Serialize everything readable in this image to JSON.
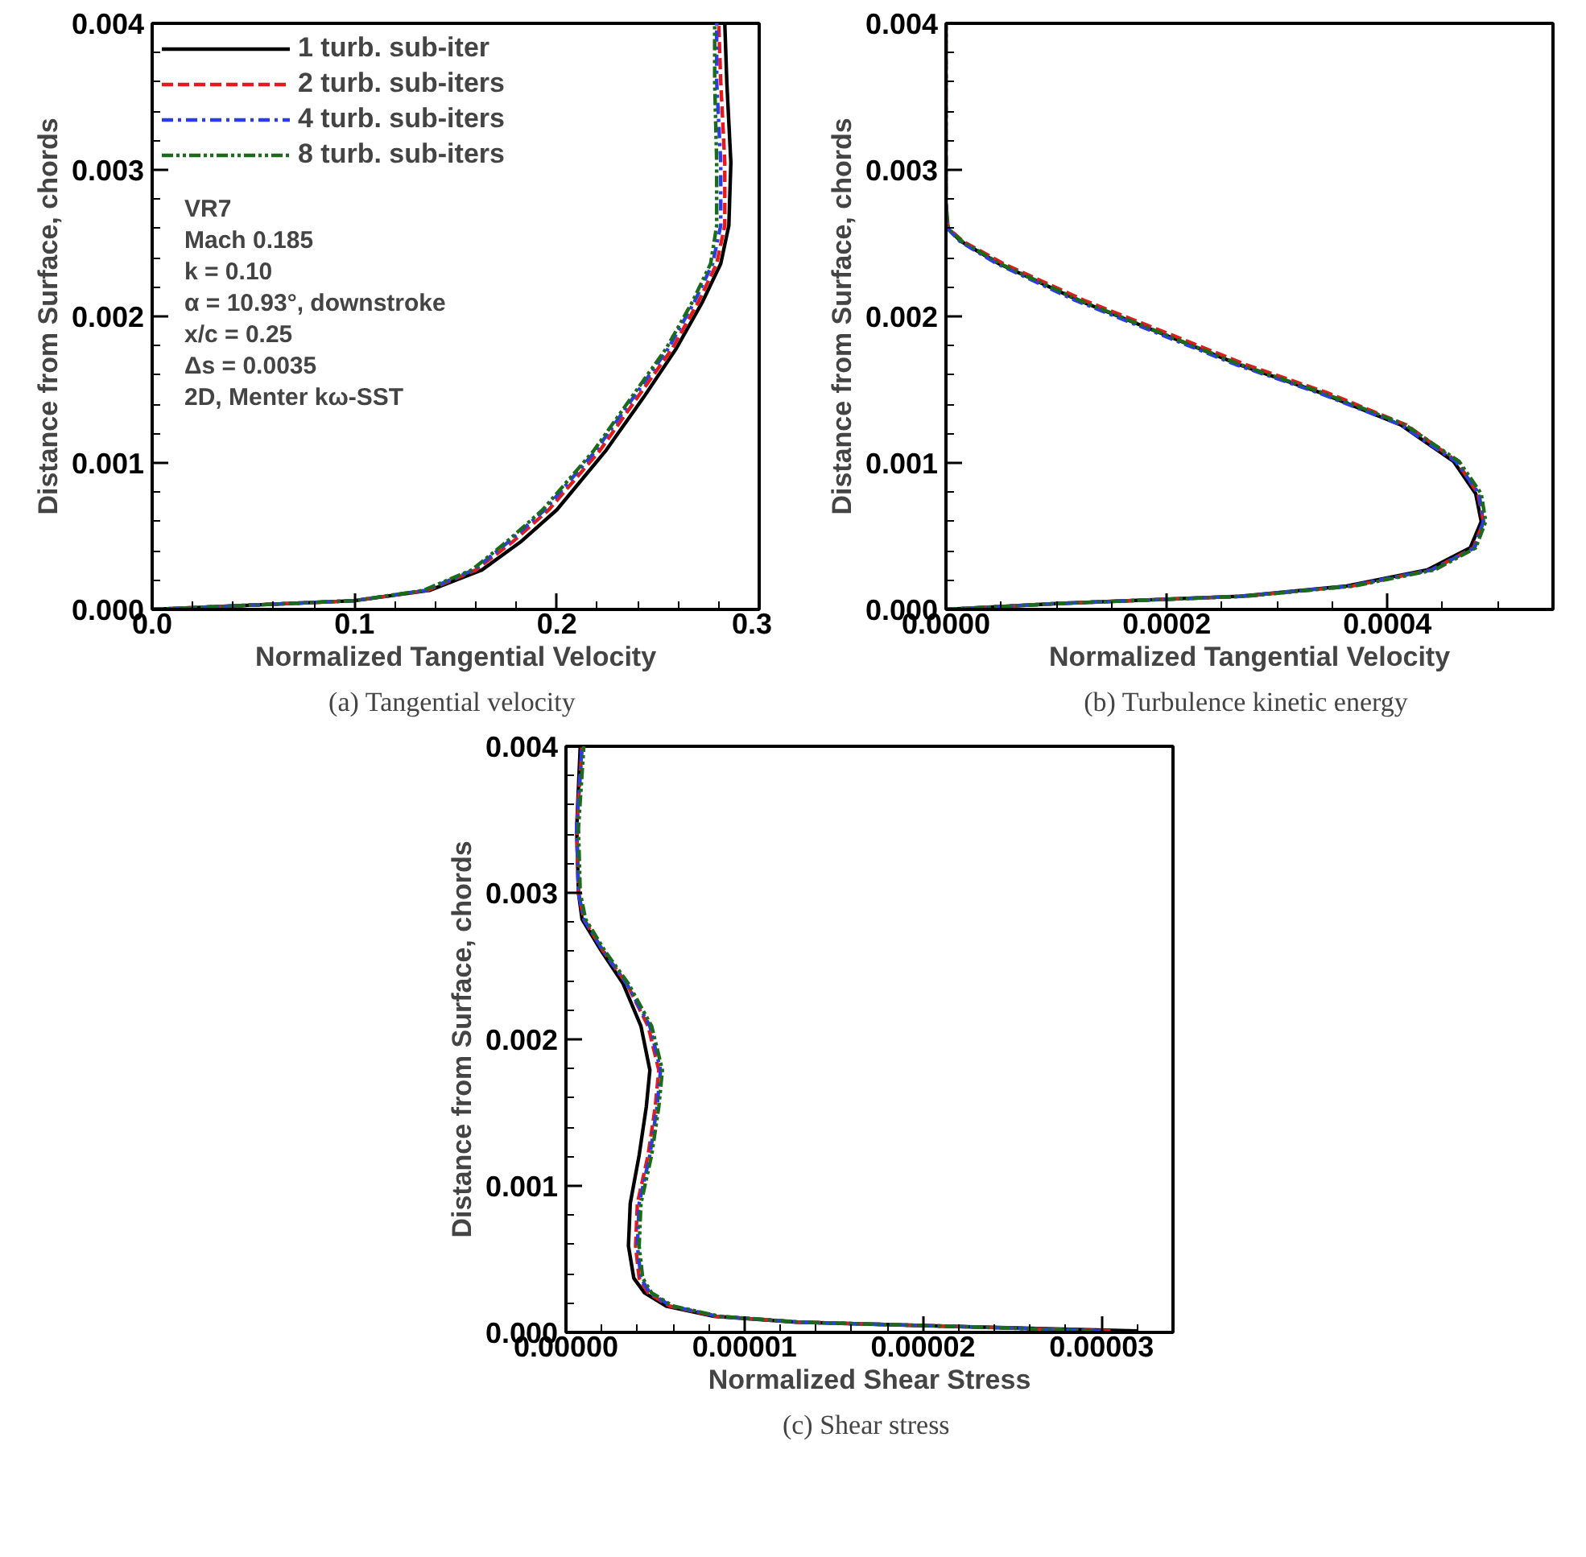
{
  "chart_data": [
    {
      "type": "line",
      "title": "(a)  Tangential velocity",
      "xlabel": "Normalized Tangential Velocity",
      "ylabel": "Distance from Surface, chords",
      "xlim": [
        0,
        0.3
      ],
      "ylim": [
        0,
        0.004
      ],
      "xticks": [
        {
          "value": 0,
          "label": "0.0"
        },
        {
          "value": 0.02,
          "label": null
        },
        {
          "value": 0.04,
          "label": null
        },
        {
          "value": 0.06,
          "label": null
        },
        {
          "value": 0.08,
          "label": null
        },
        {
          "value": 0.1,
          "label": "0.1"
        },
        {
          "value": 0.12,
          "label": null
        },
        {
          "value": 0.14,
          "label": null
        },
        {
          "value": 0.16,
          "label": null
        },
        {
          "value": 0.18,
          "label": null
        },
        {
          "value": 0.2,
          "label": "0.2"
        },
        {
          "value": 0.22,
          "label": null
        },
        {
          "value": 0.24,
          "label": null
        },
        {
          "value": 0.26,
          "label": null
        },
        {
          "value": 0.28,
          "label": null
        },
        {
          "value": 0.3,
          "label": "0.3"
        }
      ],
      "yticks": [
        {
          "value": 0,
          "label": "0.000"
        },
        {
          "value": 0.0002,
          "label": null
        },
        {
          "value": 0.0004,
          "label": null
        },
        {
          "value": 0.0006,
          "label": null
        },
        {
          "value": 0.0008,
          "label": null
        },
        {
          "value": 0.001,
          "label": "0.001"
        },
        {
          "value": 0.0012,
          "label": null
        },
        {
          "value": 0.0014,
          "label": null
        },
        {
          "value": 0.0016,
          "label": null
        },
        {
          "value": 0.0018,
          "label": null
        },
        {
          "value": 0.002,
          "label": "0.002"
        },
        {
          "value": 0.0022,
          "label": null
        },
        {
          "value": 0.0024,
          "label": null
        },
        {
          "value": 0.0026,
          "label": null
        },
        {
          "value": 0.0028,
          "label": null
        },
        {
          "value": 0.003,
          "label": "0.003"
        },
        {
          "value": 0.0032,
          "label": null
        },
        {
          "value": 0.0034,
          "label": null
        },
        {
          "value": 0.0036,
          "label": null
        },
        {
          "value": 0.0038,
          "label": null
        },
        {
          "value": 0.004,
          "label": "0.004"
        }
      ],
      "grid": false,
      "legend": "top left",
      "annotations": [
        "VR7",
        "Mach 0.185",
        "k = 0.10",
        "α = 10.93°, downstroke",
        "x/c = 0.25",
        "Δs = 0.0035",
        "2D, Menter kω-SST"
      ],
      "series": [
        {
          "name": "1 turb. sub-iter",
          "color": "#000000",
          "line_style": "solid",
          "x": [
            0,
            0.1,
            0.137,
            0.163,
            0.182,
            0.2,
            0.224,
            0.243,
            0.259,
            0.272,
            0.281,
            0.285,
            0.286,
            0.284,
            0.283
          ],
          "values": [
            0,
            6e-05,
            0.00013,
            0.00027,
            0.00046,
            0.00068,
            0.00108,
            0.00145,
            0.00178,
            0.0021,
            0.00236,
            0.00262,
            0.00305,
            0.0036,
            0.004
          ]
        },
        {
          "name": "2 turb. sub-iters",
          "color": "#e41a1c",
          "line_style": "dashed",
          "x": [
            0,
            0.1,
            0.136,
            0.16,
            0.178,
            0.196,
            0.221,
            0.24,
            0.257,
            0.27,
            0.279,
            0.283,
            0.283,
            0.281,
            0.28
          ],
          "values": [
            0,
            6e-05,
            0.00013,
            0.00027,
            0.00046,
            0.00068,
            0.00108,
            0.00145,
            0.00178,
            0.0021,
            0.00236,
            0.00262,
            0.00305,
            0.0036,
            0.004
          ]
        },
        {
          "name": "4 turb. sub-iters",
          "color": "#2b3cf0",
          "line_style": "dashdot",
          "x": [
            0,
            0.1,
            0.135,
            0.159,
            0.176,
            0.194,
            0.219,
            0.238,
            0.255,
            0.268,
            0.277,
            0.281,
            0.281,
            0.279,
            0.279
          ],
          "values": [
            0,
            6e-05,
            0.00013,
            0.00027,
            0.00046,
            0.00068,
            0.00108,
            0.00145,
            0.00178,
            0.0021,
            0.00236,
            0.00262,
            0.00305,
            0.0036,
            0.004
          ]
        },
        {
          "name": "8 turb. sub-iters",
          "color": "#1a6b1a",
          "line_style": "dashdotdot",
          "x": [
            0,
            0.1,
            0.134,
            0.158,
            0.175,
            0.193,
            0.218,
            0.237,
            0.254,
            0.267,
            0.276,
            0.279,
            0.279,
            0.278,
            0.278
          ],
          "values": [
            0,
            6e-05,
            0.00013,
            0.00027,
            0.00046,
            0.00068,
            0.00108,
            0.00145,
            0.00178,
            0.0021,
            0.00236,
            0.00262,
            0.00305,
            0.0036,
            0.004
          ]
        }
      ]
    },
    {
      "type": "line",
      "title": "(b)  Turbulence kinetic energy",
      "xlabel": "Normalized Tangential Velocity",
      "ylabel": "Distance from Surface, chords",
      "xlim": [
        0,
        0.00055
      ],
      "ylim": [
        0,
        0.004
      ],
      "xticks": [
        {
          "value": 0,
          "label": "0.0000"
        },
        {
          "value": 5e-05,
          "label": null
        },
        {
          "value": 0.0001,
          "label": null
        },
        {
          "value": 0.00015,
          "label": null
        },
        {
          "value": 0.0002,
          "label": "0.0002"
        },
        {
          "value": 0.00025,
          "label": null
        },
        {
          "value": 0.0003,
          "label": null
        },
        {
          "value": 0.00035,
          "label": null
        },
        {
          "value": 0.0004,
          "label": "0.0004"
        },
        {
          "value": 0.00045,
          "label": null
        },
        {
          "value": 0.0005,
          "label": null
        }
      ],
      "yticks": [
        {
          "value": 0,
          "label": "0.000"
        },
        {
          "value": 0.0002,
          "label": null
        },
        {
          "value": 0.0004,
          "label": null
        },
        {
          "value": 0.0006,
          "label": null
        },
        {
          "value": 0.0008,
          "label": null
        },
        {
          "value": 0.001,
          "label": "0.001"
        },
        {
          "value": 0.0012,
          "label": null
        },
        {
          "value": 0.0014,
          "label": null
        },
        {
          "value": 0.0016,
          "label": null
        },
        {
          "value": 0.0018,
          "label": null
        },
        {
          "value": 0.002,
          "label": "0.002"
        },
        {
          "value": 0.0022,
          "label": null
        },
        {
          "value": 0.0024,
          "label": null
        },
        {
          "value": 0.0026,
          "label": null
        },
        {
          "value": 0.0028,
          "label": null
        },
        {
          "value": 0.003,
          "label": "0.003"
        },
        {
          "value": 0.0032,
          "label": null
        },
        {
          "value": 0.0034,
          "label": null
        },
        {
          "value": 0.0036,
          "label": null
        },
        {
          "value": 0.0038,
          "label": null
        },
        {
          "value": 0.004,
          "label": "0.004"
        }
      ],
      "grid": false,
      "series": [
        {
          "color": "#000000",
          "line_style": "solid",
          "x": [
            0,
            0.0001,
            0.000266,
            0.000363,
            0.000436,
            0.000475,
            0.000485,
            0.00048,
            0.00046,
            0.000412,
            0.000339,
            0.000266,
            0.000193,
            0.00012,
            4.8e-05,
            1.4e-05,
            1.5e-06,
            0,
            0
          ],
          "values": [
            0,
            4e-05,
            9e-05,
            0.00016,
            0.00027,
            0.00042,
            0.0006,
            0.00079,
            0.00101,
            0.00126,
            0.00148,
            0.00167,
            0.00189,
            0.00211,
            0.00236,
            0.00251,
            0.0026,
            0.00277,
            0.004
          ]
        },
        {
          "color": "#e41a1c",
          "line_style": "dashed",
          "x": [
            0,
            0.0001,
            0.00027,
            0.000368,
            0.00044,
            0.000478,
            0.000487,
            0.000482,
            0.000463,
            0.000417,
            0.000345,
            0.000272,
            0.000199,
            0.000125,
            5.2e-05,
            1.6e-05,
            2e-06,
            0,
            0
          ],
          "values": [
            0,
            4e-05,
            9e-05,
            0.00016,
            0.00027,
            0.00042,
            0.0006,
            0.00079,
            0.00101,
            0.00126,
            0.00148,
            0.00167,
            0.00189,
            0.00211,
            0.00236,
            0.00251,
            0.0026,
            0.00277,
            0.004
          ]
        },
        {
          "color": "#2b3cf0",
          "line_style": "dashdot",
          "x": [
            0,
            0.0001,
            0.000268,
            0.000366,
            0.00044,
            0.000479,
            0.000487,
            0.000483,
            0.000462,
            0.000412,
            0.000337,
            0.000263,
            0.00019,
            0.000117,
            4.6e-05,
            1.3e-05,
            1.5e-06,
            0,
            0
          ],
          "values": [
            0,
            4e-05,
            9e-05,
            0.00016,
            0.00027,
            0.00042,
            0.0006,
            0.00079,
            0.00101,
            0.00126,
            0.00148,
            0.00167,
            0.00189,
            0.00211,
            0.00236,
            0.00251,
            0.0026,
            0.00277,
            0.004
          ]
        },
        {
          "color": "#1a6b1a",
          "line_style": "dashdotdot",
          "x": [
            0,
            0.0001,
            0.000272,
            0.00037,
            0.000443,
            0.00048,
            0.000489,
            0.000485,
            0.000465,
            0.000416,
            0.000341,
            0.000267,
            0.000194,
            0.000121,
            4.9e-05,
            1.5e-05,
            2e-06,
            0,
            0
          ],
          "values": [
            0,
            4e-05,
            9e-05,
            0.00016,
            0.00027,
            0.00042,
            0.0006,
            0.00079,
            0.00101,
            0.00126,
            0.00148,
            0.00167,
            0.00189,
            0.00211,
            0.00236,
            0.00251,
            0.0026,
            0.00277,
            0.004
          ]
        }
      ]
    },
    {
      "type": "line",
      "title": "(c)  Shear stress",
      "xlabel": "Normalized Shear Stress",
      "ylabel": "Distance from Surface, chords",
      "xlim": [
        0,
        3.4e-05
      ],
      "ylim": [
        0,
        0.004
      ],
      "xticks": [
        {
          "value": 0,
          "label": "0.00000"
        },
        {
          "value": 2e-06,
          "label": null
        },
        {
          "value": 4e-06,
          "label": null
        },
        {
          "value": 6e-06,
          "label": null
        },
        {
          "value": 8e-06,
          "label": null
        },
        {
          "value": 1e-05,
          "label": "0.00001"
        },
        {
          "value": 1.2e-05,
          "label": null
        },
        {
          "value": 1.4e-05,
          "label": null
        },
        {
          "value": 1.6e-05,
          "label": null
        },
        {
          "value": 1.8e-05,
          "label": null
        },
        {
          "value": 2e-05,
          "label": "0.00002"
        },
        {
          "value": 2.2e-05,
          "label": null
        },
        {
          "value": 2.4e-05,
          "label": null
        },
        {
          "value": 2.6e-05,
          "label": null
        },
        {
          "value": 2.8e-05,
          "label": null
        },
        {
          "value": 3e-05,
          "label": "0.00003"
        },
        {
          "value": 3.2e-05,
          "label": null
        }
      ],
      "yticks": [
        {
          "value": 0,
          "label": "0.000"
        },
        {
          "value": 0.0002,
          "label": null
        },
        {
          "value": 0.0004,
          "label": null
        },
        {
          "value": 0.0006,
          "label": null
        },
        {
          "value": 0.0008,
          "label": null
        },
        {
          "value": 0.001,
          "label": "0.001"
        },
        {
          "value": 0.0012,
          "label": null
        },
        {
          "value": 0.0014,
          "label": null
        },
        {
          "value": 0.0016,
          "label": null
        },
        {
          "value": 0.0018,
          "label": null
        },
        {
          "value": 0.002,
          "label": "0.002"
        },
        {
          "value": 0.0022,
          "label": null
        },
        {
          "value": 0.0024,
          "label": null
        },
        {
          "value": 0.0026,
          "label": null
        },
        {
          "value": 0.0028,
          "label": null
        },
        {
          "value": 0.003,
          "label": "0.003"
        },
        {
          "value": 0.0032,
          "label": null
        },
        {
          "value": 0.0034,
          "label": null
        },
        {
          "value": 0.0036,
          "label": null
        },
        {
          "value": 0.0038,
          "label": null
        },
        {
          "value": 0.004,
          "label": "0.004"
        }
      ],
      "grid": false,
      "series": [
        {
          "color": "#000000",
          "line_style": "solid",
          "x": [
            3.2e-05,
            2.2e-05,
            1.29e-05,
            8.3e-06,
            5.6e-06,
            4.4e-06,
            3.8e-06,
            3.5e-06,
            3.6e-06,
            4.1e-06,
            4.5e-06,
            4.7e-06,
            4.2e-06,
            3.2e-06,
            2e-06,
            9e-07,
            7e-07,
            6e-07,
            8e-07
          ],
          "values": [
            1e-05,
            4e-05,
            7e-05,
            0.00011,
            0.00018,
            0.00027,
            0.00037,
            0.00059,
            0.00088,
            0.00121,
            0.00154,
            0.00179,
            0.00209,
            0.00238,
            0.0026,
            0.00282,
            0.003,
            0.00344,
            0.004
          ]
        },
        {
          "color": "#e41a1c",
          "line_style": "dashed",
          "x": [
            3.05e-05,
            2.2e-05,
            1.3e-05,
            8.4e-06,
            5.8e-06,
            4.6e-06,
            4.1e-06,
            3.9e-06,
            4e-06,
            4.6e-06,
            5e-06,
            5.2e-06,
            4.6e-06,
            3.4e-06,
            2.1e-06,
            1e-06,
            7e-07,
            6e-07,
            9e-07
          ],
          "values": [
            1e-05,
            4e-05,
            7e-05,
            0.00011,
            0.00018,
            0.00027,
            0.00037,
            0.00059,
            0.00088,
            0.00121,
            0.00154,
            0.00179,
            0.00209,
            0.00238,
            0.0026,
            0.00282,
            0.003,
            0.00344,
            0.004
          ]
        },
        {
          "color": "#2b3cf0",
          "line_style": "dashdot",
          "x": [
            3e-05,
            2.2e-05,
            1.3e-05,
            8.5e-06,
            5.9e-06,
            4.7e-06,
            4.2e-06,
            4e-06,
            4.1e-06,
            4.7e-06,
            5.1e-06,
            5.3e-06,
            4.7e-06,
            3.4e-06,
            2.1e-06,
            1e-06,
            7e-07,
            6e-07,
            9e-07
          ],
          "values": [
            1e-05,
            4e-05,
            7e-05,
            0.00011,
            0.00018,
            0.00027,
            0.00037,
            0.00059,
            0.00088,
            0.00121,
            0.00154,
            0.00179,
            0.00209,
            0.00238,
            0.0026,
            0.00282,
            0.003,
            0.00344,
            0.004
          ]
        },
        {
          "color": "#1a6b1a",
          "line_style": "dashdotdot",
          "x": [
            2.95e-05,
            2.2e-05,
            1.31e-05,
            8.6e-06,
            6e-06,
            4.8e-06,
            4.3e-06,
            4.1e-06,
            4.2e-06,
            4.8e-06,
            5.2e-06,
            5.4e-06,
            4.8e-06,
            3.5e-06,
            2.2e-06,
            1.1e-06,
            8e-07,
            7e-07,
            1e-06
          ],
          "values": [
            1e-05,
            4e-05,
            7e-05,
            0.00011,
            0.00018,
            0.00027,
            0.00037,
            0.00059,
            0.00088,
            0.00121,
            0.00154,
            0.00179,
            0.00209,
            0.00238,
            0.0026,
            0.00282,
            0.003,
            0.00344,
            0.004
          ]
        }
      ]
    }
  ]
}
